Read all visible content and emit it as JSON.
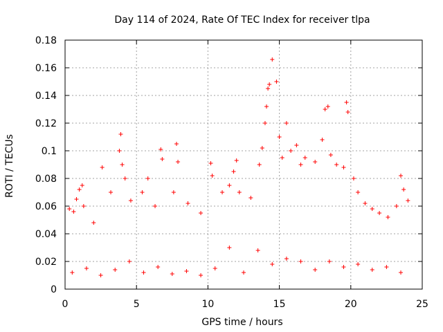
{
  "chart_data": {
    "type": "scatter",
    "title": "Day 114 of 2024, Rate Of TEC Index for receiver tlpa",
    "xlabel": "GPS time / hours",
    "ylabel": "ROTI / TECUs",
    "xlim": [
      0,
      25
    ],
    "ylim": [
      0,
      0.18
    ],
    "xticks": [
      0,
      5,
      10,
      15,
      20,
      25
    ],
    "yticks": [
      0,
      0.02,
      0.04,
      0.06,
      0.08,
      0.1,
      0.12,
      0.14,
      0.16,
      0.18
    ],
    "xtick_labels": [
      "0",
      "5",
      "10",
      "15",
      "20",
      "25"
    ],
    "ytick_labels": [
      "0",
      "0.02",
      "0.04",
      "0.06",
      "0.08",
      "0.1",
      "0.12",
      "0.14",
      "0.16",
      "0.18"
    ],
    "grid": true,
    "marker": "+",
    "color": "#ff0000",
    "series": [
      {
        "name": "ROTI",
        "x": [
          0.3,
          0.6,
          0.8,
          1.0,
          1.2,
          1.3,
          2.0,
          2.6,
          3.2,
          3.8,
          3.9,
          4.0,
          4.2,
          4.6,
          5.4,
          5.8,
          6.3,
          6.7,
          6.8,
          7.6,
          7.8,
          7.9,
          8.6,
          9.5,
          10.2,
          10.3,
          11.0,
          11.5,
          11.8,
          12.0,
          12.2,
          13.0,
          13.6,
          13.8,
          14.0,
          14.1,
          14.2,
          14.3,
          14.5,
          14.8,
          15.0,
          15.2,
          15.5,
          15.8,
          16.2,
          16.5,
          16.8,
          17.5,
          18.0,
          18.2,
          18.4,
          18.6,
          19.0,
          19.5,
          19.7,
          19.8,
          20.2,
          20.5,
          21.0,
          21.5,
          22.0,
          22.6,
          23.2,
          23.5,
          23.7,
          24.0,
          0.5,
          1.5,
          2.5,
          3.5,
          4.5,
          5.5,
          6.5,
          7.5,
          8.5,
          9.5,
          10.5,
          11.5,
          12.5,
          13.5,
          14.5,
          15.5,
          16.5,
          17.5,
          18.5,
          19.5,
          20.5,
          21.5,
          22.5,
          23.5
        ],
        "y": [
          0.058,
          0.056,
          0.065,
          0.072,
          0.075,
          0.06,
          0.048,
          0.088,
          0.07,
          0.1,
          0.112,
          0.09,
          0.08,
          0.064,
          0.07,
          0.08,
          0.06,
          0.101,
          0.094,
          0.07,
          0.105,
          0.092,
          0.062,
          0.055,
          0.091,
          0.082,
          0.07,
          0.075,
          0.085,
          0.093,
          0.07,
          0.066,
          0.09,
          0.102,
          0.12,
          0.132,
          0.145,
          0.148,
          0.166,
          0.15,
          0.11,
          0.095,
          0.12,
          0.1,
          0.104,
          0.09,
          0.095,
          0.092,
          0.108,
          0.13,
          0.132,
          0.097,
          0.09,
          0.088,
          0.135,
          0.128,
          0.08,
          0.07,
          0.062,
          0.058,
          0.055,
          0.052,
          0.06,
          0.082,
          0.072,
          0.064,
          0.012,
          0.015,
          0.01,
          0.014,
          0.02,
          0.012,
          0.016,
          0.011,
          0.013,
          0.01,
          0.015,
          0.03,
          0.012,
          0.028,
          0.018,
          0.022,
          0.02,
          0.014,
          0.02,
          0.016,
          0.018,
          0.014,
          0.016,
          0.012
        ]
      }
    ]
  }
}
